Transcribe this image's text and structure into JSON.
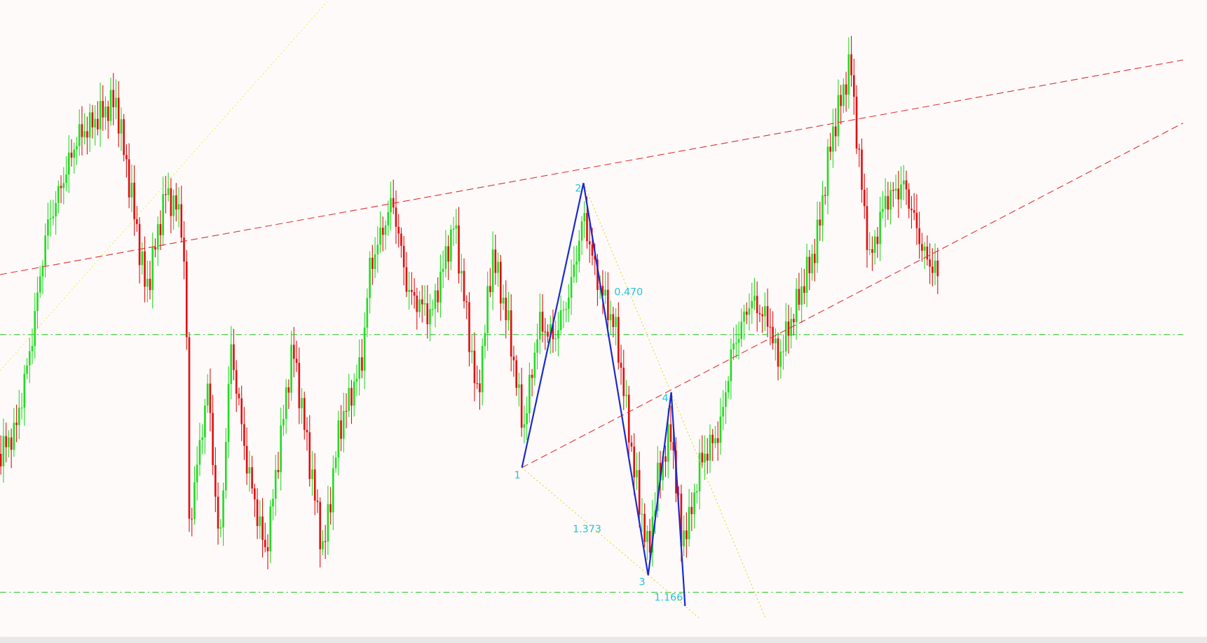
{
  "pattern": {
    "points": [
      "1",
      "2",
      "3",
      "4"
    ],
    "ratios": [
      "0.470",
      "1.373",
      "1.166"
    ]
  }
}
